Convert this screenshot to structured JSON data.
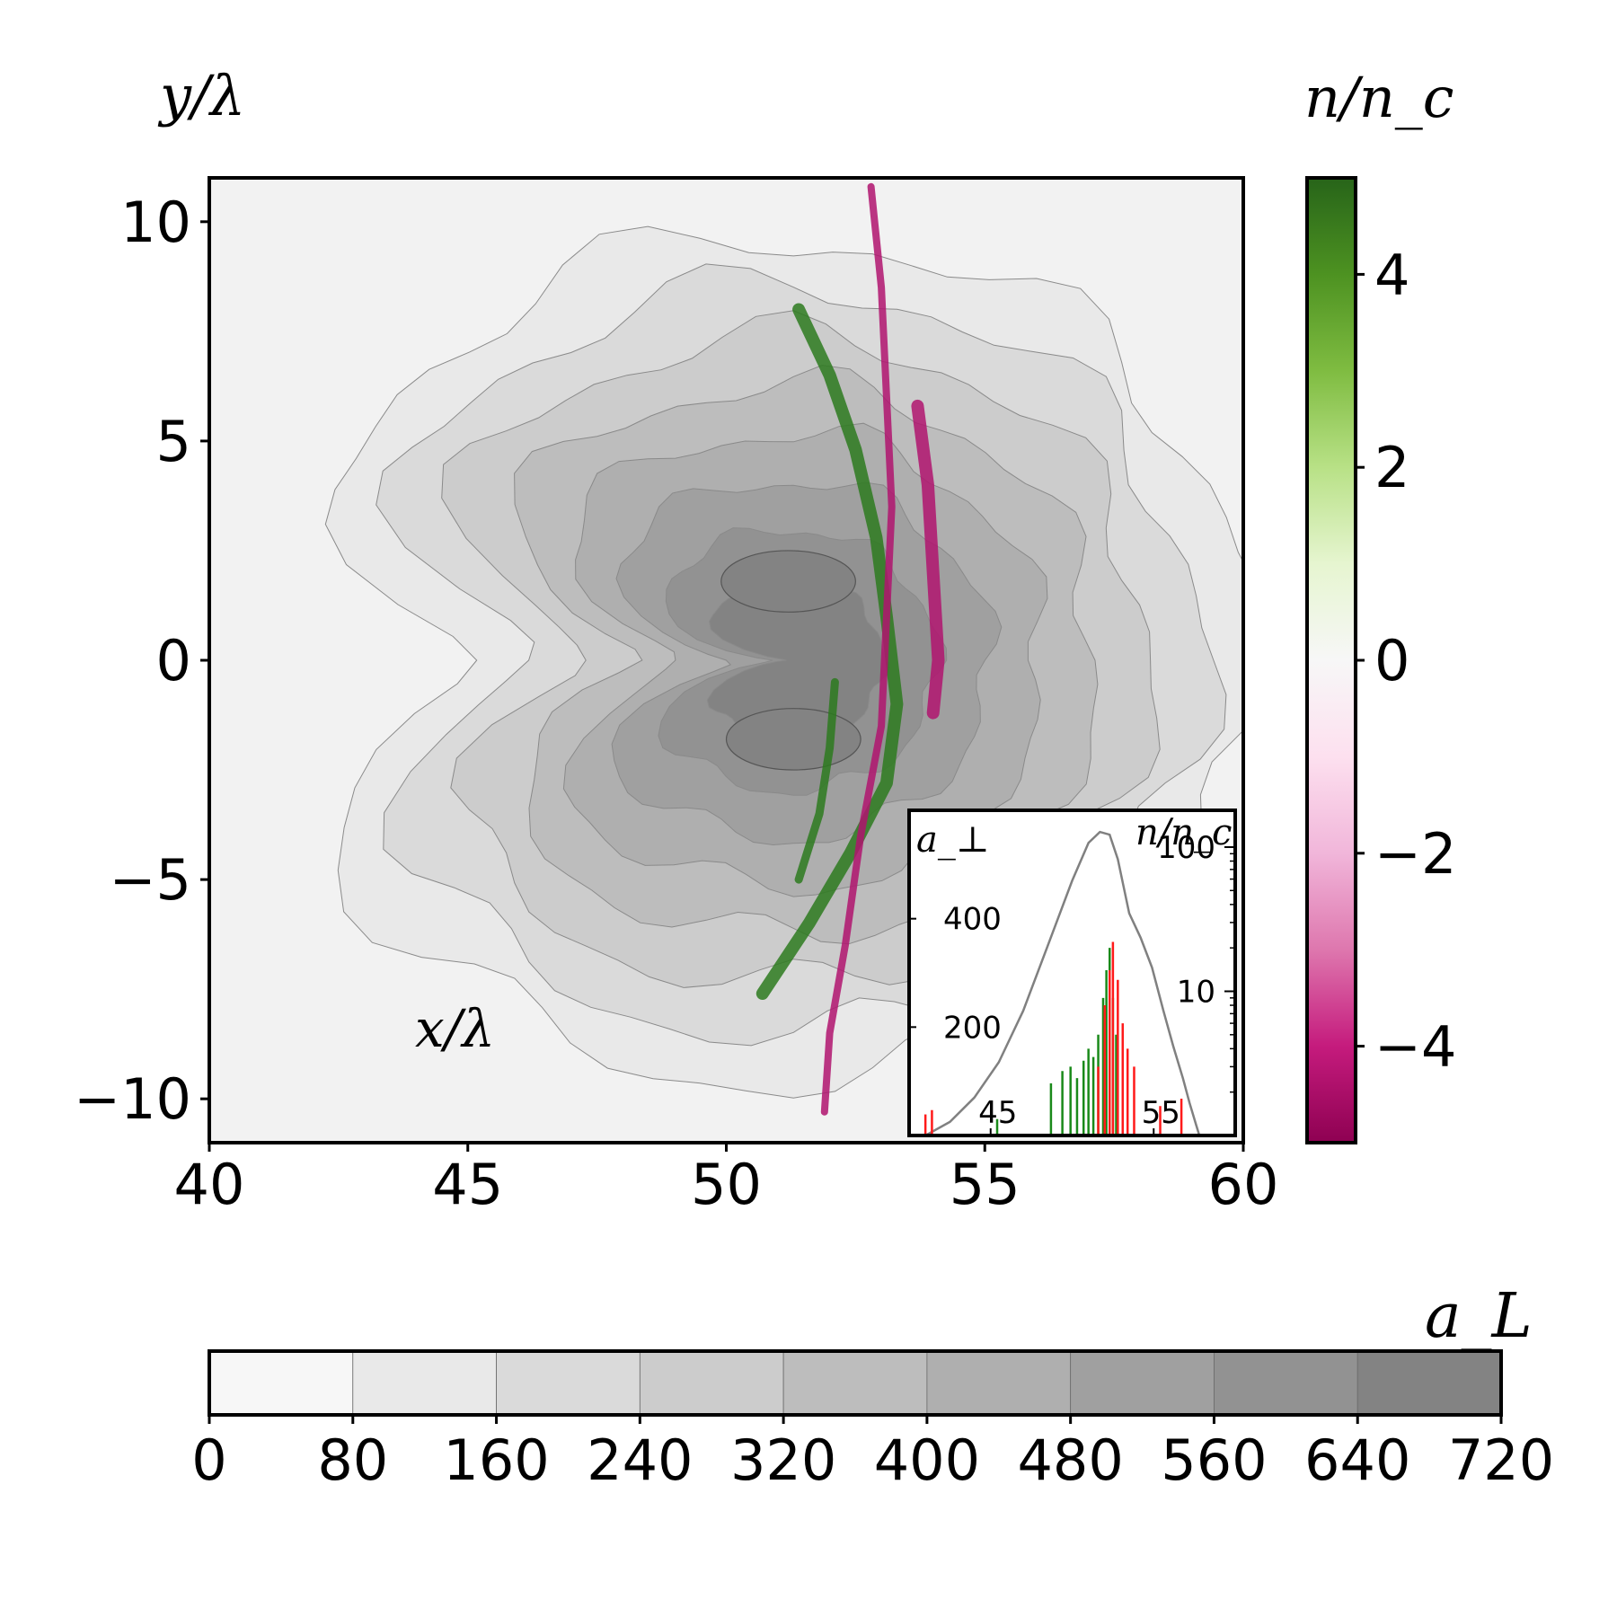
{
  "chart_data": [
    {
      "type": "heatmap",
      "xlabel": "x/λ",
      "ylabel": "y/λ",
      "xlim": [
        40,
        60
      ],
      "ylim": [
        -11,
        11
      ],
      "xticks": [
        "40",
        "45",
        "50",
        "55",
        "60"
      ],
      "xtick_values": [
        40,
        45,
        50,
        55,
        60
      ],
      "yticks": [
        "10",
        "5",
        "0",
        "−5",
        "−10"
      ],
      "ytick_values": [
        10,
        5,
        0,
        -5,
        -10
      ],
      "field_contours": {
        "name": "a_L",
        "levels": [
          0,
          80,
          160,
          240,
          320,
          400,
          480,
          560,
          640,
          720
        ],
        "center_x": 51.3,
        "center_y": 0,
        "lobes": [
          {
            "x": 51.2,
            "y": 1.8
          },
          {
            "x": 51.3,
            "y": -1.8
          }
        ]
      },
      "density_colorbar": {
        "label": "n/n_c",
        "range": [
          -5,
          5
        ],
        "ticks": [
          "4",
          "2",
          "0",
          "−2",
          "−4"
        ],
        "tick_values": [
          4,
          2,
          0,
          -2,
          -4
        ],
        "colors": {
          "positive": "#276419",
          "zero": "#f7f7f7",
          "negative": "#8e0152"
        }
      },
      "field_colorbar": {
        "label": "a_L",
        "ticks": [
          "0",
          "80",
          "160",
          "240",
          "320",
          "400",
          "480",
          "560",
          "640",
          "720"
        ],
        "tick_values": [
          0,
          80,
          160,
          240,
          320,
          400,
          480,
          560,
          640,
          720
        ]
      },
      "structures": {
        "electron_layers": [
          {
            "color": "#2d7a1f",
            "points": [
              [
                51.4,
                8.0
              ],
              [
                52.0,
                6.5
              ],
              [
                52.5,
                4.8
              ],
              [
                52.9,
                2.8
              ],
              [
                53.1,
                1.0
              ],
              [
                53.3,
                -1.0
              ],
              [
                53.1,
                -2.8
              ],
              [
                52.4,
                -4.4
              ],
              [
                51.6,
                -6.0
              ],
              [
                50.7,
                -7.6
              ]
            ]
          },
          {
            "color": "#2d7a1f",
            "points": [
              [
                52.1,
                -0.5
              ],
              [
                52.0,
                -2.0
              ],
              [
                51.8,
                -3.5
              ],
              [
                51.4,
                -5.0
              ]
            ]
          }
        ],
        "ion_layers": [
          {
            "color": "#b0146f",
            "points": [
              [
                52.8,
                10.8
              ],
              [
                53.0,
                8.5
              ],
              [
                53.1,
                6.0
              ],
              [
                53.2,
                3.5
              ],
              [
                53.1,
                1.0
              ],
              [
                53.0,
                -1.5
              ],
              [
                52.6,
                -4.0
              ],
              [
                52.3,
                -6.5
              ],
              [
                52.0,
                -8.5
              ],
              [
                51.9,
                -10.3
              ]
            ]
          },
          {
            "color": "#b0146f",
            "points": [
              [
                53.7,
                5.8
              ],
              [
                53.9,
                4.0
              ],
              [
                54.0,
                2.0
              ],
              [
                54.1,
                0.0
              ],
              [
                54.0,
                -1.2
              ]
            ]
          }
        ]
      }
    },
    {
      "type": "line",
      "inset": true,
      "left_axis_label": "a_⊥",
      "right_axis_label": "n/n_c",
      "xlim": [
        40,
        60
      ],
      "xticks": [
        "45",
        "55"
      ],
      "xtick_values": [
        45,
        55
      ],
      "left_ylim": [
        0,
        600
      ],
      "left_yticks": [
        "400",
        "200"
      ],
      "left_ytick_values": [
        400,
        200
      ],
      "right_yscale": "log",
      "right_ylim": [
        1,
        180
      ],
      "right_yticks": [
        "100",
        "10"
      ],
      "right_ytick_values": [
        100,
        10
      ],
      "series": [
        {
          "color": "#808080",
          "axis": "left",
          "x": [
            41.0,
            42.5,
            44.0,
            45.5,
            47.0,
            48.5,
            50.0,
            51.0,
            51.7,
            52.3,
            52.8,
            53.5,
            54.2,
            54.9,
            55.6,
            56.2,
            56.8,
            57.2,
            57.6,
            57.8
          ],
          "y": [
            0,
            25,
            70,
            135,
            230,
            350,
            470,
            540,
            560,
            555,
            510,
            410,
            365,
            310,
            230,
            165,
            105,
            60,
            20,
            0
          ]
        },
        {
          "color": "#1a8a1a",
          "axis": "right",
          "x": [
            45.4,
            48.7,
            49.4,
            49.9,
            50.3,
            50.7,
            51.0,
            51.3,
            51.6,
            51.9,
            52.1,
            52.3,
            52.5,
            52.7
          ],
          "y": [
            1.3,
            2.3,
            2.8,
            3.0,
            2.5,
            3.3,
            4.0,
            3.5,
            5.0,
            9.0,
            14.0,
            20.0,
            9.0,
            5.0
          ]
        },
        {
          "color": "#ff1a1a",
          "axis": "right",
          "x": [
            41.0,
            41.4,
            51.6,
            52.0,
            52.3,
            52.5,
            52.8,
            53.1,
            53.4,
            53.8,
            55.4,
            56.7
          ],
          "y": [
            1.4,
            1.5,
            3.0,
            8.0,
            14.0,
            22.0,
            12.0,
            6.0,
            4.0,
            3.0,
            1.6,
            1.8
          ]
        }
      ]
    }
  ]
}
